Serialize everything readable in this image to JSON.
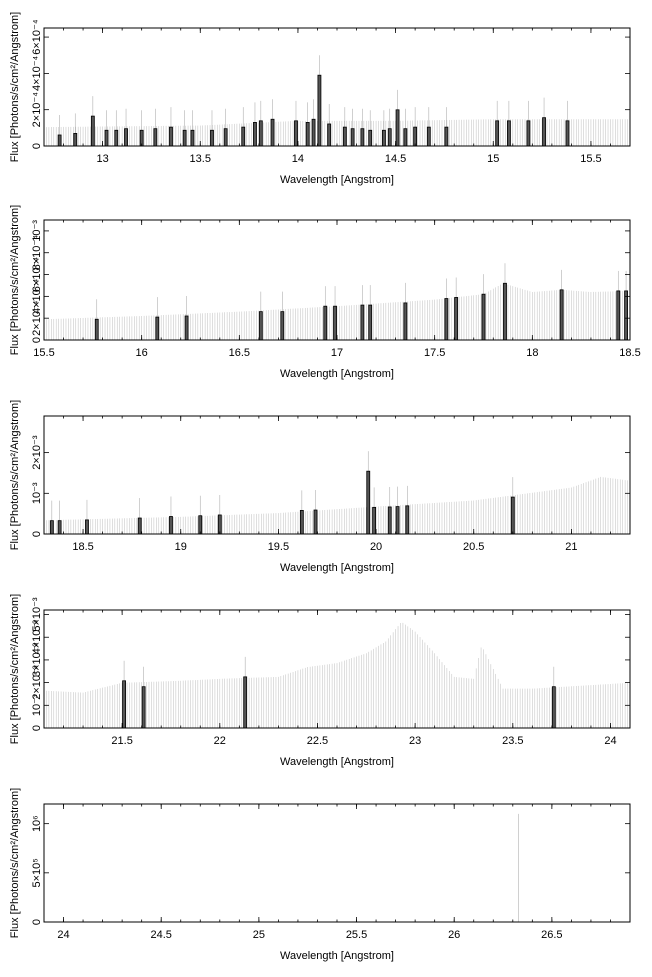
{
  "chart_data": [
    {
      "type": "bar",
      "xlabel": "Wavelength [Angstrom]",
      "ylabel": "Flux [Photons/s/cm²/Angstrom]",
      "xlim": [
        12.7,
        15.7
      ],
      "ylim": [
        0,
        0.00075
      ],
      "x_ticks": [
        "13",
        "13.5",
        "14",
        "14.5",
        "15",
        "15.5"
      ],
      "y_ticks": [
        "0",
        "2×10⁻⁴",
        "4×10⁻⁴",
        "6×10⁻⁴"
      ],
      "continuum": [
        [
          12.7,
          0.00012
        ],
        [
          13.5,
          0.00013
        ],
        [
          14.0,
          0.00016
        ],
        [
          14.5,
          0.00016
        ],
        [
          15.0,
          0.00017
        ],
        [
          15.7,
          0.00017
        ]
      ],
      "lines": [
        [
          12.78,
          7e-05
        ],
        [
          12.86,
          8e-05
        ],
        [
          12.95,
          0.00019
        ],
        [
          13.02,
          0.0001
        ],
        [
          13.07,
          0.0001
        ],
        [
          13.12,
          0.00011
        ],
        [
          13.2,
          0.0001
        ],
        [
          13.27,
          0.00011
        ],
        [
          13.35,
          0.00012
        ],
        [
          13.42,
          0.0001
        ],
        [
          13.46,
          0.0001
        ],
        [
          13.56,
          0.0001
        ],
        [
          13.63,
          0.00011
        ],
        [
          13.72,
          0.00012
        ],
        [
          13.78,
          0.00015
        ],
        [
          13.81,
          0.00016
        ],
        [
          13.87,
          0.00017
        ],
        [
          13.99,
          0.00016
        ],
        [
          14.05,
          0.00015
        ],
        [
          14.08,
          0.00017
        ],
        [
          14.11,
          0.00045
        ],
        [
          14.16,
          0.00014
        ],
        [
          14.24,
          0.00012
        ],
        [
          14.28,
          0.00011
        ],
        [
          14.33,
          0.00011
        ],
        [
          14.37,
          0.0001
        ],
        [
          14.44,
          0.0001
        ],
        [
          14.47,
          0.00011
        ],
        [
          14.51,
          0.00023
        ],
        [
          14.55,
          0.00011
        ],
        [
          14.6,
          0.00012
        ],
        [
          14.67,
          0.00012
        ],
        [
          14.76,
          0.00012
        ],
        [
          15.02,
          0.00016
        ],
        [
          15.08,
          0.00016
        ],
        [
          15.18,
          0.00016
        ],
        [
          15.26,
          0.00018
        ],
        [
          15.38,
          0.00016
        ]
      ]
    },
    {
      "type": "bar",
      "xlabel": "Wavelength [Angstrom]",
      "ylabel": "Flux [Photons/s/cm²/Angstrom]",
      "xlim": [
        15.5,
        18.5
      ],
      "ylim": [
        0,
        0.0011
      ],
      "x_ticks": [
        "15.5",
        "16",
        "16.5",
        "17",
        "17.5",
        "18",
        "18.5"
      ],
      "y_ticks": [
        "0",
        "2×10⁻⁴",
        "4×10⁻⁴",
        "6×10⁻⁴",
        "8×10⁻⁴",
        "10⁻³"
      ],
      "continuum": [
        [
          15.5,
          0.00019
        ],
        [
          16.0,
          0.00022
        ],
        [
          16.5,
          0.00026
        ],
        [
          17.0,
          0.00031
        ],
        [
          17.5,
          0.00037
        ],
        [
          17.75,
          0.00042
        ],
        [
          17.85,
          0.00052
        ],
        [
          18.0,
          0.00044
        ],
        [
          18.15,
          0.00046
        ],
        [
          18.3,
          0.00044
        ],
        [
          18.5,
          0.00045
        ]
      ],
      "lines": [
        [
          15.77,
          0.00019
        ],
        [
          16.08,
          0.00021
        ],
        [
          16.23,
          0.00022
        ],
        [
          16.61,
          0.00026
        ],
        [
          16.72,
          0.00026
        ],
        [
          16.94,
          0.00031
        ],
        [
          16.99,
          0.00031
        ],
        [
          17.13,
          0.00032
        ],
        [
          17.17,
          0.00032
        ],
        [
          17.35,
          0.00034
        ],
        [
          17.56,
          0.00038
        ],
        [
          17.61,
          0.00039
        ],
        [
          17.75,
          0.00042
        ],
        [
          17.86,
          0.00052
        ],
        [
          18.15,
          0.00046
        ],
        [
          18.44,
          0.00045
        ],
        [
          18.48,
          0.00045
        ]
      ]
    },
    {
      "type": "bar",
      "xlabel": "Wavelength [Angstrom]",
      "ylabel": "Flux [Photons/s/cm²/Angstrom]",
      "xlim": [
        18.3,
        21.3
      ],
      "ylim": [
        0,
        0.0031
      ],
      "x_ticks": [
        "18.5",
        "19",
        "19.5",
        "20",
        "20.5",
        "21"
      ],
      "y_ticks": [
        "0",
        "10⁻³",
        "2×10⁻³"
      ],
      "continuum": [
        [
          18.3,
          0.00036
        ],
        [
          19.0,
          0.00045
        ],
        [
          19.5,
          0.00055
        ],
        [
          20.0,
          0.00072
        ],
        [
          20.5,
          0.00088
        ],
        [
          21.0,
          0.00122
        ],
        [
          21.15,
          0.0015
        ],
        [
          21.3,
          0.0014
        ]
      ],
      "lines": [
        [
          18.34,
          0.00035
        ],
        [
          18.38,
          0.00035
        ],
        [
          18.52,
          0.00037
        ],
        [
          18.79,
          0.00042
        ],
        [
          18.95,
          0.00046
        ],
        [
          19.1,
          0.00048
        ],
        [
          19.2,
          0.0005
        ],
        [
          19.62,
          0.00062
        ],
        [
          19.69,
          0.00063
        ],
        [
          19.96,
          0.00165
        ],
        [
          19.99,
          0.0007
        ],
        [
          20.07,
          0.00071
        ],
        [
          20.11,
          0.00072
        ],
        [
          20.16,
          0.00074
        ],
        [
          20.7,
          0.00097
        ]
      ]
    },
    {
      "type": "bar",
      "xlabel": "Wavelength [Angstrom]",
      "ylabel": "Flux [Photons/s/cm²/Angstrom]",
      "xlim": [
        21.1,
        24.1
      ],
      "ylim": [
        0,
        0.006
      ],
      "x_ticks": [
        "21.5",
        "22",
        "22.5",
        "23",
        "23.5",
        "24"
      ],
      "y_ticks": [
        "0",
        "10⁻³",
        "2×10⁻³",
        "3×10⁻³",
        "4×10⁻³",
        "5×10⁻³"
      ],
      "continuum": [
        [
          21.1,
          0.0019
        ],
        [
          21.3,
          0.0018
        ],
        [
          21.5,
          0.0023
        ],
        [
          21.8,
          0.0024
        ],
        [
          22.0,
          0.0025
        ],
        [
          22.3,
          0.0026
        ],
        [
          22.45,
          0.0031
        ],
        [
          22.6,
          0.0033
        ],
        [
          22.75,
          0.0038
        ],
        [
          22.85,
          0.0044
        ],
        [
          22.93,
          0.0054
        ],
        [
          23.0,
          0.0049
        ],
        [
          23.1,
          0.0038
        ],
        [
          23.2,
          0.0026
        ],
        [
          23.3,
          0.0025
        ],
        [
          23.34,
          0.0042
        ],
        [
          23.4,
          0.003
        ],
        [
          23.45,
          0.002
        ],
        [
          23.6,
          0.002
        ],
        [
          24.1,
          0.0023
        ]
      ],
      "lines": [
        [
          21.51,
          0.0024
        ],
        [
          21.61,
          0.0021
        ],
        [
          22.13,
          0.0026
        ],
        [
          23.71,
          0.0021
        ]
      ]
    },
    {
      "type": "bar",
      "xlabel": "Wavelength [Angstrom]",
      "ylabel": "Flux [Photons/s/cm²/Angstrom]",
      "xlim": [
        23.9,
        26.9
      ],
      "ylim": [
        0,
        1200000
      ],
      "x_ticks": [
        "24",
        "24.5",
        "25",
        "25.5",
        "26",
        "26.5"
      ],
      "y_ticks": [
        "0",
        "5×10⁵",
        "10⁶"
      ],
      "continuum": [],
      "spikes": [
        [
          26.33,
          1100000
        ]
      ],
      "lines": []
    }
  ]
}
